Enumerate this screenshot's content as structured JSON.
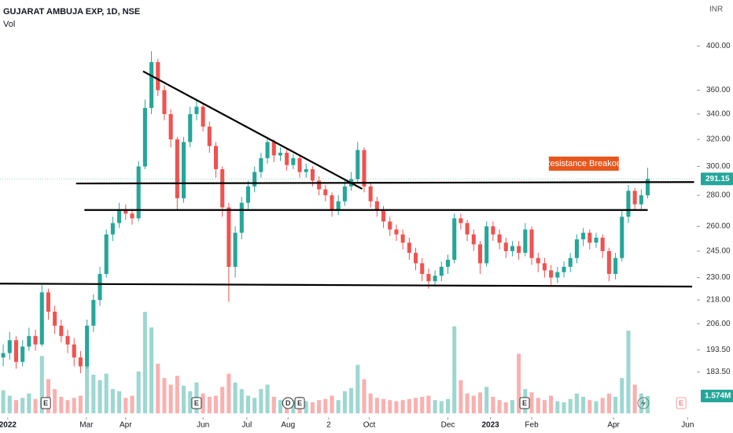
{
  "chart_data": {
    "type": "candlestick",
    "title": "GUJARAT AMBUJA EXP, 1D, NSE",
    "volume_title": "Vol",
    "currency": "INR",
    "log_scale": true,
    "up_color": "#26a69a",
    "down_color": "#ef5350",
    "xlim": [
      0,
      108
    ],
    "ylim": [
      164.7,
      446.6
    ],
    "yticks": [
      {
        "value": 400,
        "label": "400.00"
      },
      {
        "value": 360,
        "label": "360.00"
      },
      {
        "value": 340,
        "label": "340.00"
      },
      {
        "value": 320,
        "label": "320.00"
      },
      {
        "value": 300,
        "label": "300.00"
      },
      {
        "value": 280,
        "label": "280.00"
      },
      {
        "value": 260,
        "label": "260.00"
      },
      {
        "value": 245,
        "label": "245.00"
      },
      {
        "value": 230,
        "label": "230.00"
      },
      {
        "value": 218,
        "label": "218.00"
      },
      {
        "value": 206,
        "label": "206.00"
      },
      {
        "value": 193.5,
        "label": "193.50"
      },
      {
        "value": 183.5,
        "label": "183.50"
      }
    ],
    "xticks": [
      {
        "value": 1.2,
        "label": "2022"
      },
      {
        "value": 13.4,
        "label": "Mar"
      },
      {
        "value": 19.5,
        "label": "Apr"
      },
      {
        "value": 31.5,
        "label": "Jun"
      },
      {
        "value": 38.3,
        "label": "Jul"
      },
      {
        "value": 44.7,
        "label": "Aug"
      },
      {
        "value": 51,
        "label": "2"
      },
      {
        "value": 57.3,
        "label": "Oct"
      },
      {
        "value": 69.5,
        "label": "Dec"
      },
      {
        "value": 76.1,
        "label": "2023"
      },
      {
        "value": 82.5,
        "label": "Feb"
      },
      {
        "value": 95.2,
        "label": "Apr"
      },
      {
        "value": 106.7,
        "label": "Jun"
      }
    ],
    "open": [
      190,
      192,
      198,
      188,
      195,
      200,
      196,
      222,
      212,
      205,
      200,
      196,
      190,
      186,
      205,
      218,
      232,
      255,
      262,
      270,
      268,
      265,
      300,
      345,
      385,
      360,
      340,
      320,
      278,
      318,
      340,
      346,
      330,
      315,
      298,
      272,
      236,
      256,
      275,
      286,
      296,
      306,
      318,
      308,
      310,
      301,
      306,
      296,
      298,
      290,
      284,
      280,
      270,
      276,
      286,
      291,
      312,
      286,
      276,
      270,
      263,
      258,
      255,
      250,
      244,
      238,
      232,
      228,
      231,
      236,
      240,
      265,
      262,
      255,
      249,
      238,
      260,
      255,
      250,
      245,
      248,
      244,
      258,
      241,
      238,
      234,
      230,
      233,
      236,
      241,
      252,
      256,
      250,
      253,
      245,
      232,
      241,
      266,
      283,
      274,
      280
    ],
    "high": [
      196,
      202,
      200,
      198,
      204,
      203,
      226,
      224,
      215,
      208,
      203,
      199,
      193,
      208,
      221,
      236,
      258,
      266,
      275,
      274,
      271,
      304,
      352,
      395,
      388,
      364,
      344,
      322,
      322,
      346,
      352,
      349,
      334,
      318,
      300,
      275,
      260,
      279,
      290,
      300,
      310,
      322,
      320,
      314,
      313,
      309,
      308,
      302,
      300,
      293,
      287,
      282,
      280,
      290,
      296,
      318,
      314,
      288,
      279,
      273,
      266,
      261,
      258,
      253,
      247,
      241,
      235,
      234,
      239,
      243,
      268,
      268,
      264,
      258,
      251,
      263,
      263,
      258,
      253,
      251,
      251,
      262,
      260,
      244,
      241,
      237,
      236,
      239,
      244,
      255,
      259,
      258,
      256,
      255,
      247,
      244,
      270,
      287,
      285,
      284,
      299
    ],
    "low": [
      186,
      189,
      185,
      186,
      193,
      193,
      195,
      208,
      201,
      197,
      192,
      186,
      183,
      185,
      202,
      215,
      230,
      251,
      259,
      264,
      261,
      263,
      298,
      340,
      355,
      335,
      314,
      270,
      275,
      314,
      335,
      326,
      310,
      292,
      266,
      217,
      230,
      252,
      271,
      282,
      292,
      302,
      303,
      304,
      297,
      298,
      292,
      292,
      286,
      280,
      276,
      266,
      267,
      273,
      283,
      289,
      282,
      272,
      266,
      259,
      254,
      251,
      246,
      240,
      234,
      228,
      224,
      225,
      228,
      232,
      238,
      258,
      251,
      245,
      232,
      236,
      251,
      246,
      241,
      242,
      240,
      242,
      237,
      233,
      230,
      226,
      227,
      230,
      233,
      238,
      248,
      246,
      247,
      241,
      228,
      229,
      239,
      262,
      270,
      271,
      278
    ],
    "close": [
      192,
      198,
      188,
      195,
      200,
      196,
      222,
      212,
      205,
      200,
      196,
      190,
      186,
      205,
      218,
      232,
      255,
      262,
      270,
      268,
      265,
      300,
      345,
      385,
      360,
      340,
      320,
      278,
      318,
      340,
      346,
      330,
      315,
      298,
      272,
      236,
      256,
      275,
      286,
      296,
      306,
      318,
      308,
      310,
      301,
      306,
      296,
      298,
      290,
      284,
      280,
      270,
      276,
      286,
      291,
      312,
      286,
      276,
      270,
      263,
      258,
      255,
      250,
      244,
      238,
      232,
      228,
      231,
      236,
      240,
      265,
      262,
      255,
      249,
      238,
      260,
      255,
      250,
      245,
      248,
      244,
      258,
      241,
      238,
      234,
      230,
      233,
      236,
      241,
      252,
      256,
      250,
      253,
      245,
      232,
      241,
      266,
      283,
      274,
      280,
      291.15
    ],
    "volume": [
      2.1,
      1.6,
      1.2,
      1.4,
      1.8,
      1.3,
      5.2,
      3.1,
      2.2,
      1.5,
      1.2,
      1.4,
      1.6,
      4.8,
      3.5,
      3.0,
      3.6,
      2.2,
      2.0,
      1.4,
      1.6,
      3.8,
      9.2,
      7.8,
      4.5,
      3.2,
      2.6,
      3.4,
      2.5,
      2.0,
      2.8,
      1.8,
      1.5,
      1.6,
      2.4,
      3.6,
      2.8,
      2.2,
      1.6,
      1.4,
      2.2,
      2.6,
      1.5,
      1.2,
      1.4,
      1.2,
      1.5,
      1.1,
      1.0,
      1.2,
      1.3,
      1.6,
      1.2,
      2.0,
      2.3,
      4.4,
      3.1,
      1.8,
      1.4,
      1.3,
      1.2,
      1.1,
      1.2,
      1.3,
      1.4,
      1.5,
      1.6,
      1.2,
      1.1,
      1.3,
      7.9,
      3.0,
      1.8,
      1.6,
      1.9,
      2.4,
      1.5,
      1.2,
      1.0,
      1.2,
      5.4,
      2.2,
      1.9,
      1.4,
      1.2,
      1.6,
      1.1,
      1.0,
      1.3,
      1.8,
      1.5,
      1.2,
      1.1,
      1.4,
      1.8,
      1.5,
      3.2,
      7.5,
      2.6,
      1.8,
      1.574
    ],
    "volume_last_label": "1.574M",
    "lines": [
      {
        "x": [
          11.8,
          107.7
        ],
        "y": [
          288,
          289
        ]
      },
      {
        "x": [
          13.1,
          100.5
        ],
        "y": [
          270.3,
          270.3
        ]
      },
      {
        "x": [
          0,
          107.4
        ],
        "y": [
          226.7,
          225.1
        ]
      },
      {
        "x": [
          22.2,
          56.2
        ],
        "y": [
          376.6,
          284.3
        ]
      }
    ],
    "annotation": {
      "text": "Resistance Breakout",
      "x": 85.4,
      "y": 302
    },
    "events": [
      {
        "label": "E",
        "x": 7.1
      },
      {
        "label": "E",
        "x": 30.5
      },
      {
        "label": "D",
        "x": 44.7
      },
      {
        "label": "E",
        "x": 46.5
      },
      {
        "label": "E",
        "x": 81.4
      },
      {
        "label": "E",
        "x": 105.7
      }
    ]
  }
}
